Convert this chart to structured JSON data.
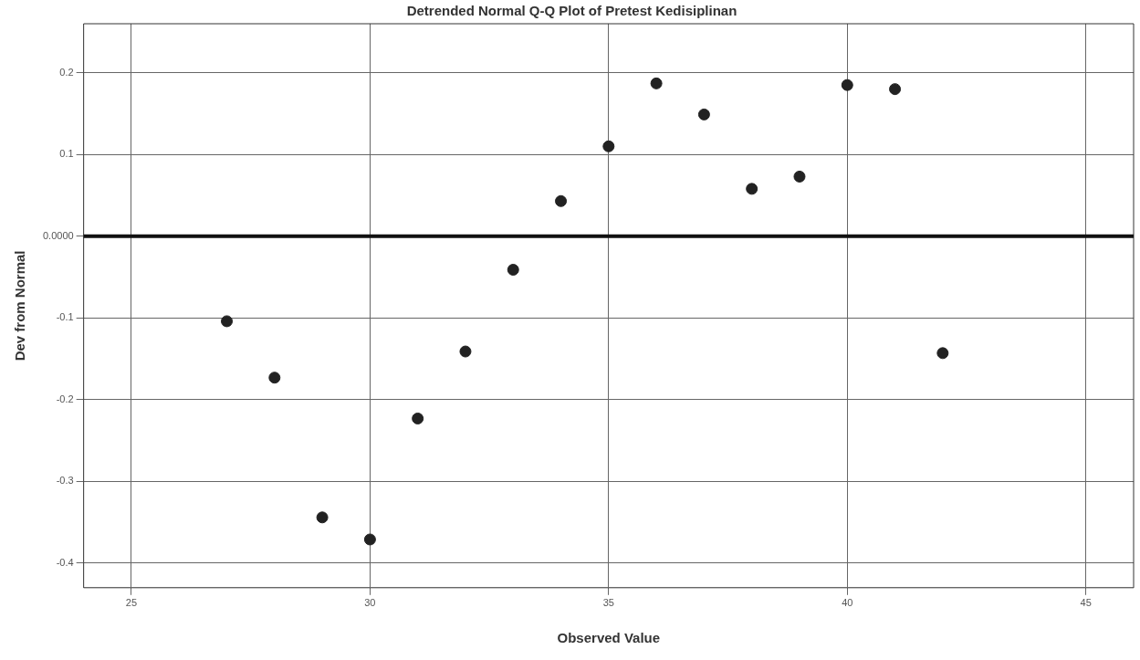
{
  "chart_data": {
    "type": "scatter",
    "title": "Detrended Normal Q-Q Plot of Pretest Kedisiplinan",
    "xlabel": "Observed Value",
    "ylabel": "Dev from Normal",
    "x": [
      27,
      28,
      29,
      30,
      31,
      32,
      33,
      34,
      35,
      36,
      37,
      38,
      39,
      40,
      41,
      42
    ],
    "series": [
      {
        "color": "#222222",
        "values": [
          -0.104,
          -0.173,
          -0.344,
          -0.371,
          -0.223,
          -0.141,
          -0.041,
          0.043,
          0.11,
          0.187,
          0.149,
          0.058,
          0.073,
          0.185,
          0.18,
          -0.143
        ]
      }
    ],
    "xlim": [
      24,
      46
    ],
    "xticks": [
      25,
      30,
      35,
      40,
      45
    ],
    "ylim": [
      -0.43,
      0.26
    ],
    "yticks": [
      -0.4,
      -0.3,
      -0.2,
      -0.1,
      {
        "value": 0,
        "label": "0.0000"
      },
      0.1,
      0.2
    ],
    "ref_lines": [
      {
        "axis": "y",
        "value": 0,
        "color": "#111111"
      }
    ],
    "grid": true,
    "marker": "circle",
    "legend": false
  }
}
